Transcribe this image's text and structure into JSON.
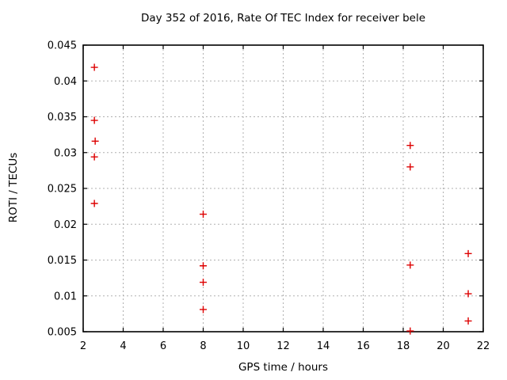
{
  "page": {
    "background_color": "#ffffff"
  },
  "chart_data": {
    "type": "scatter",
    "title": "Day 352 of 2016, Rate Of TEC Index for receiver bele",
    "xlabel": "GPS time / hours",
    "ylabel": "ROTI / TECUs",
    "xlim": [
      2,
      22
    ],
    "ylim": [
      0.005,
      0.045
    ],
    "x_ticks": [
      2,
      4,
      6,
      8,
      10,
      12,
      14,
      16,
      18,
      20,
      22
    ],
    "x_tick_labels": [
      "2",
      "4",
      "6",
      "8",
      "10",
      "12",
      "14",
      "16",
      "18",
      "20",
      "22"
    ],
    "y_ticks": [
      0.005,
      0.01,
      0.015,
      0.02,
      0.025,
      0.03,
      0.035,
      0.04,
      0.045
    ],
    "y_tick_labels": [
      "0.005",
      "0.01",
      "0.015",
      "0.02",
      "0.025",
      "0.03",
      "0.035",
      "0.04",
      "0.045"
    ],
    "grid": true,
    "grid_style": "dashed",
    "legend_position": "none",
    "marker_symbol": "plus",
    "marker_color": "#dd0000",
    "grid_color": "#b0b0b0",
    "axis_color": "#000000",
    "series": [
      {
        "name": "ROTI",
        "points": [
          [
            2.56,
            0.0419
          ],
          [
            2.56,
            0.0345
          ],
          [
            2.6,
            0.0316
          ],
          [
            2.56,
            0.0294
          ],
          [
            2.56,
            0.0229
          ],
          [
            8.0,
            0.0214
          ],
          [
            8.0,
            0.0142
          ],
          [
            8.0,
            0.0119
          ],
          [
            8.0,
            0.0081
          ],
          [
            18.35,
            0.031
          ],
          [
            18.35,
            0.028
          ],
          [
            18.35,
            0.0143
          ],
          [
            18.35,
            0.0051
          ],
          [
            21.25,
            0.0159
          ],
          [
            21.25,
            0.0103
          ],
          [
            21.25,
            0.0065
          ]
        ]
      }
    ]
  }
}
